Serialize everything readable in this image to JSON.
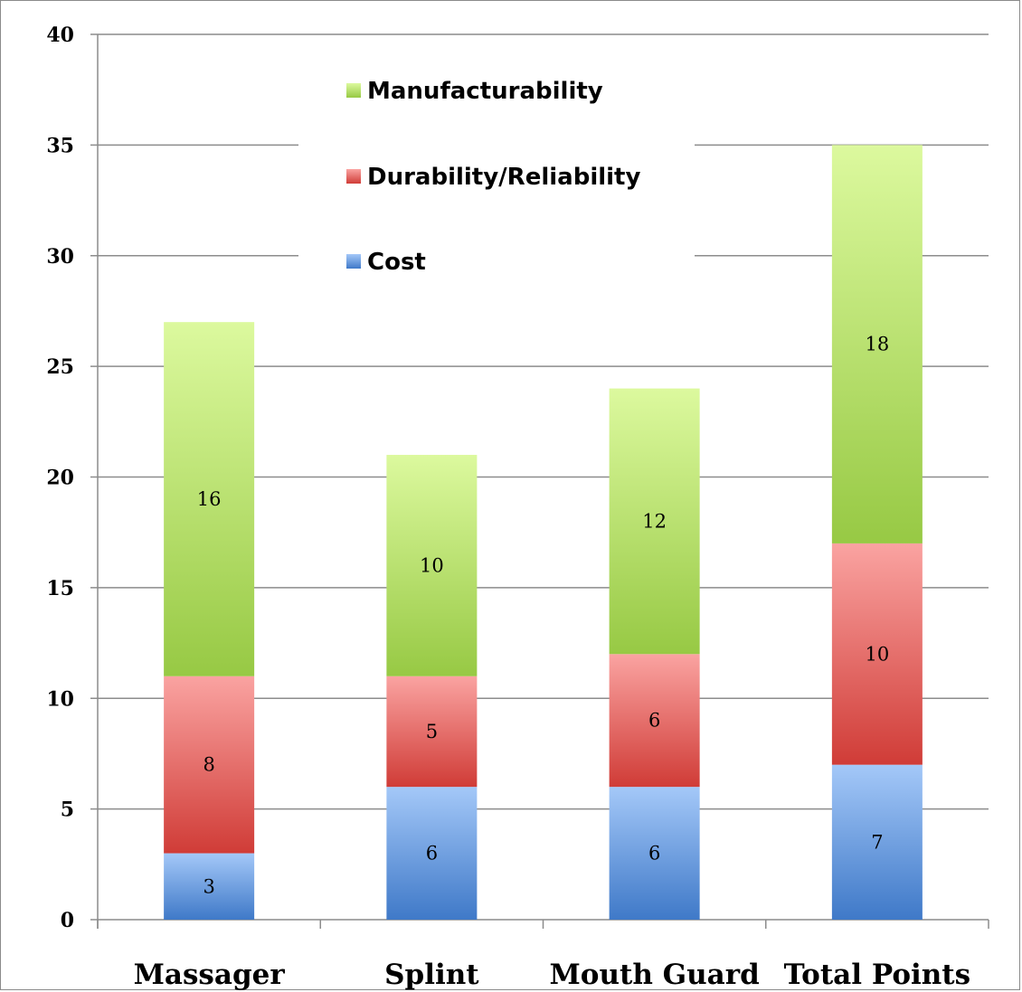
{
  "chart_data": {
    "type": "bar",
    "stacked": true,
    "categories": [
      "Massager",
      "Splint",
      "Mouth Guard",
      "Total Points"
    ],
    "series": [
      {
        "name": "Cost",
        "values": [
          3,
          6,
          6,
          7
        ],
        "color": "#4f81c7"
      },
      {
        "name": "Durability/Reliability",
        "values": [
          8,
          5,
          6,
          10
        ],
        "color": "#d9534f"
      },
      {
        "name": "Manufacturability",
        "values": [
          16,
          10,
          12,
          18
        ],
        "color": "#9bc94a"
      }
    ],
    "legend_order": [
      "Manufacturability",
      "Durability/Reliability",
      "Cost"
    ],
    "legend_position": "top-center",
    "ylim": [
      0,
      40
    ],
    "yticks": [
      0,
      5,
      10,
      15,
      20,
      25,
      30,
      35,
      40
    ],
    "grid": true,
    "title": "",
    "xlabel": "",
    "ylabel": ""
  }
}
